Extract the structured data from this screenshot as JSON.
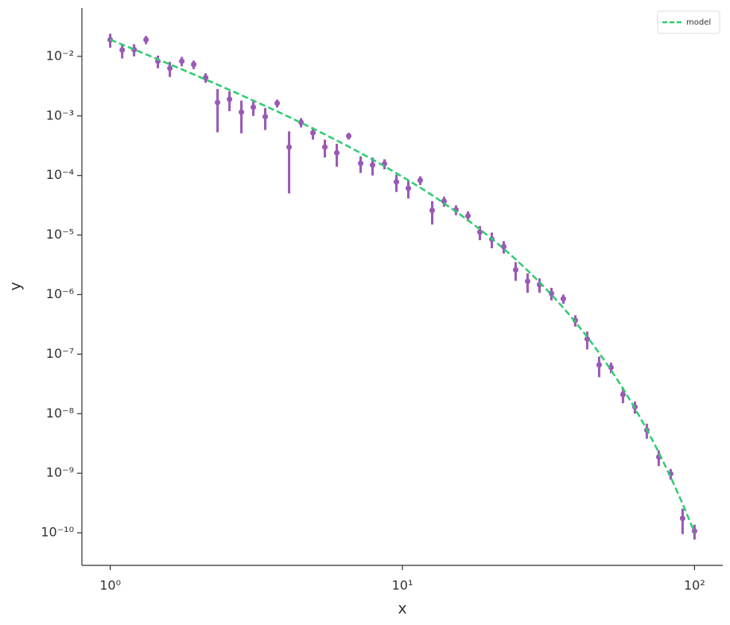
{
  "chart_data": {
    "type": "errorbar",
    "xlabel": "x",
    "ylabel": "y",
    "xscale": "log",
    "yscale": "log",
    "xlim": [
      0.8,
      125
    ],
    "ylim": [
      2.84e-11,
      0.065
    ],
    "xticks": [
      {
        "value": 1,
        "label": "10⁰"
      },
      {
        "value": 10,
        "label": "10¹"
      },
      {
        "value": 100,
        "label": "10²"
      }
    ],
    "yticks": [
      {
        "value": 1e-10,
        "label": "10⁻¹⁰"
      },
      {
        "value": 1e-09,
        "label": "10⁻⁹"
      },
      {
        "value": 1e-08,
        "label": "10⁻⁸"
      },
      {
        "value": 1e-07,
        "label": "10⁻⁷"
      },
      {
        "value": 1e-06,
        "label": "10⁻⁶"
      },
      {
        "value": 1e-05,
        "label": "10⁻⁵"
      },
      {
        "value": 0.0001,
        "label": "10⁻⁴"
      },
      {
        "value": 0.001,
        "label": "10⁻³"
      },
      {
        "value": 0.01,
        "label": "10⁻²"
      }
    ],
    "legend": "upper right",
    "x": [
      1,
      1.099,
      1.207,
      1.326,
      1.456,
      1.6,
      1.758,
      1.931,
      2.121,
      2.33,
      2.56,
      2.812,
      3.089,
      3.393,
      3.728,
      4.095,
      4.498,
      4.942,
      5.429,
      5.964,
      6.551,
      7.197,
      7.906,
      8.685,
      9.541,
      10.48,
      11.51,
      12.65,
      13.89,
      15.26,
      16.77,
      18.42,
      20.24,
      22.23,
      24.42,
      26.83,
      29.47,
      32.37,
      35.56,
      39.07,
      42.92,
      47.15,
      51.79,
      56.9,
      62.51,
      68.66,
      75.43,
      82.86,
      91.03,
      100
    ],
    "series": [
      {
        "type": "errorbar",
        "color": "#9b59b6",
        "values": [
          0.019,
          0.0128,
          0.013,
          0.019,
          0.0083,
          0.0063,
          0.0083,
          0.0073,
          0.0044,
          0.00168,
          0.0019,
          0.00116,
          0.0014,
          0.00097,
          0.00163,
          0.0003,
          0.00078,
          0.00052,
          0.0003,
          0.00024,
          0.00046,
          0.00016,
          0.00015,
          0.000157,
          7.8e-05,
          6.1e-05,
          8.3e-05,
          2.6e-05,
          3.7e-05,
          2.65e-05,
          2.1e-05,
          1.12e-05,
          8.5e-06,
          6.4e-06,
          2.6e-06,
          1.67e-06,
          1.47e-06,
          1.05e-06,
          8.5e-07,
          3.7e-07,
          1.8e-07,
          6.6e-08,
          6e-08,
          2.1e-08,
          1.3e-08,
          5.3e-09,
          1.87e-09,
          9.8e-10,
          1.75e-10,
          1.07e-10
        ],
        "errors": [
          0.005,
          0.0036,
          0.003,
          0.003,
          0.002,
          0.0018,
          0.0015,
          0.0012,
          0.0008,
          0.00115,
          0.0007,
          0.00065,
          0.0004,
          0.00039,
          0.00025,
          0.00025,
          0.00014,
          0.00012,
          0.0001,
          0.0001,
          6e-05,
          5e-05,
          5e-05,
          3e-05,
          2.5e-05,
          2e-05,
          1.4e-05,
          1.1e-05,
          7e-06,
          5e-06,
          4e-06,
          3e-06,
          2.5e-06,
          1.5e-06,
          9e-07,
          6e-07,
          4e-07,
          2.5e-07,
          1.5e-07,
          8e-08,
          6e-08,
          2.5e-08,
          1.2e-08,
          6e-09,
          3e-09,
          1.5e-09,
          5.5e-10,
          2e-10,
          8e-11,
          3e-11
        ]
      },
      {
        "type": "line",
        "name": "model",
        "color": "#2ecc71",
        "dashed": true,
        "values": [
          0.0191,
          0.0158,
          0.0131,
          0.0108,
          0.00891,
          0.00735,
          0.00606,
          0.00498,
          0.00408,
          0.00335,
          0.00274,
          0.00223,
          0.00181,
          0.00147,
          0.00119,
          0.000958,
          0.000769,
          0.000614,
          0.000489,
          0.000387,
          0.000305,
          0.000238,
          0.000185,
          0.000143,
          0.000109,
          8.31e-05,
          6.25e-05,
          4.65e-05,
          3.41e-05,
          2.48e-05,
          1.77e-05,
          1.25e-05,
          8.63e-06,
          5.87e-06,
          3.91e-06,
          2.54e-06,
          1.62e-06,
          1e-06,
          6e-07,
          3.48e-07,
          1.95e-07,
          1.05e-07,
          5.4e-08,
          2.65e-08,
          1.23e-08,
          5.43e-09,
          2.24e-09,
          8.63e-10,
          3.07e-10,
          1.01e-10
        ]
      }
    ]
  }
}
